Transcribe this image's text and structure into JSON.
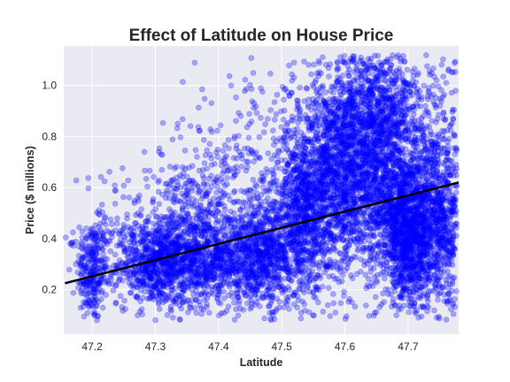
{
  "chart_data": {
    "type": "scatter",
    "title": "Effect of Latitude on House Price",
    "xlabel": "Latitude",
    "ylabel": "Price ($ millions)",
    "xlim": [
      47.155,
      47.78
    ],
    "ylim": [
      0.025,
      1.155
    ],
    "x_ticks": [
      {
        "value": 47.2,
        "label": "47.2"
      },
      {
        "value": 47.3,
        "label": "47.3"
      },
      {
        "value": 47.4,
        "label": "47.4"
      },
      {
        "value": 47.5,
        "label": "47.5"
      },
      {
        "value": 47.6,
        "label": "47.6"
      },
      {
        "value": 47.7,
        "label": "47.7"
      }
    ],
    "y_ticks": [
      {
        "value": 0.2,
        "label": "0.2"
      },
      {
        "value": 0.4,
        "label": "0.4"
      },
      {
        "value": 0.6,
        "label": "0.6"
      },
      {
        "value": 0.8,
        "label": "0.8"
      },
      {
        "value": 1.0,
        "label": "1.0"
      }
    ],
    "grid": true,
    "series": [
      {
        "name": "houses",
        "kind": "scatter",
        "color": "#0000ff",
        "alpha": 0.3,
        "clusters": [
          {
            "x": 47.2,
            "y": 0.27,
            "sx": 0.012,
            "sy": 0.1,
            "n": 260
          },
          {
            "x": 47.22,
            "y": 0.42,
            "sx": 0.03,
            "sy": 0.12,
            "n": 80
          },
          {
            "x": 47.3,
            "y": 0.3,
            "sx": 0.03,
            "sy": 0.08,
            "n": 650
          },
          {
            "x": 47.33,
            "y": 0.45,
            "sx": 0.04,
            "sy": 0.14,
            "n": 280
          },
          {
            "x": 47.38,
            "y": 0.32,
            "sx": 0.035,
            "sy": 0.09,
            "n": 650
          },
          {
            "x": 47.4,
            "y": 0.52,
            "sx": 0.05,
            "sy": 0.18,
            "n": 260
          },
          {
            "x": 47.47,
            "y": 0.33,
            "sx": 0.035,
            "sy": 0.1,
            "n": 750
          },
          {
            "x": 47.46,
            "y": 0.58,
            "sx": 0.05,
            "sy": 0.22,
            "n": 250
          },
          {
            "x": 47.53,
            "y": 0.48,
            "sx": 0.02,
            "sy": 0.16,
            "n": 520
          },
          {
            "x": 47.58,
            "y": 0.6,
            "sx": 0.035,
            "sy": 0.18,
            "n": 1300
          },
          {
            "x": 47.6,
            "y": 0.86,
            "sx": 0.04,
            "sy": 0.16,
            "n": 550
          },
          {
            "x": 47.66,
            "y": 0.65,
            "sx": 0.03,
            "sy": 0.2,
            "n": 1100
          },
          {
            "x": 47.66,
            "y": 0.95,
            "sx": 0.03,
            "sy": 0.12,
            "n": 350
          },
          {
            "x": 47.7,
            "y": 0.42,
            "sx": 0.02,
            "sy": 0.13,
            "n": 900
          },
          {
            "x": 47.745,
            "y": 0.45,
            "sx": 0.03,
            "sy": 0.16,
            "n": 1000
          },
          {
            "x": 47.74,
            "y": 0.75,
            "sx": 0.03,
            "sy": 0.18,
            "n": 260
          }
        ]
      },
      {
        "name": "trend",
        "kind": "line",
        "color": "#000000",
        "x": [
          47.157,
          47.78
        ],
        "y": [
          0.225,
          0.62
        ]
      }
    ]
  }
}
